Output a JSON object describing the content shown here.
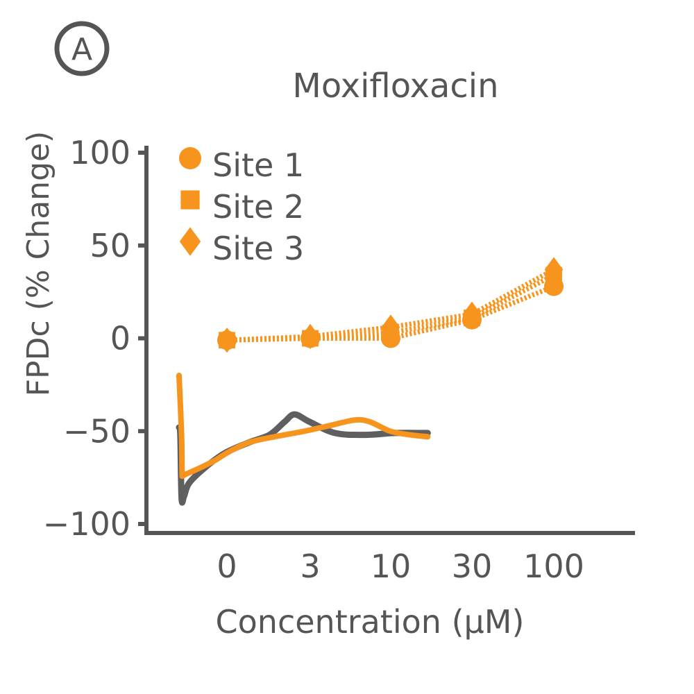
{
  "chart_data": {
    "type": "line",
    "panel_label": "A",
    "title": "Moxifloxacin",
    "xlabel": "Concentration (μM)",
    "ylabel": "FPDc (% Change)",
    "categories": [
      "0",
      "3",
      "10",
      "30",
      "100"
    ],
    "ylim": [
      -100,
      100
    ],
    "yticks": [
      100,
      50,
      0,
      -50,
      -100
    ],
    "ytick_labels": [
      "100",
      "50",
      "0",
      "−50",
      "−100"
    ],
    "legend_position": "top-left",
    "colors": {
      "series": "#f7941d",
      "trace_dark": "#5f5f5f",
      "axis": "#555555"
    },
    "series": [
      {
        "name": "Site 1",
        "marker": "circle",
        "values": [
          -1,
          0,
          0,
          10,
          28
        ]
      },
      {
        "name": "Site 2",
        "marker": "square",
        "values": [
          -1,
          0,
          3,
          11,
          34
        ]
      },
      {
        "name": "Site 3",
        "marker": "diamond",
        "values": [
          -1,
          1,
          6,
          13,
          37
        ]
      }
    ],
    "inset_traces": {
      "x_range": [
        0,
        1
      ],
      "dark": {
        "x": [
          0,
          0.005,
          0.01,
          0.02,
          0.04,
          0.1,
          0.18,
          0.28,
          0.36,
          0.42,
          0.46,
          0.52,
          0.62,
          0.74,
          0.86,
          0.99
        ],
        "y": [
          -48,
          -52,
          -86,
          -85,
          -78,
          -70,
          -62,
          -56,
          -52,
          -45,
          -41,
          -45,
          -51,
          -52,
          -51,
          -51
        ]
      },
      "orange": {
        "x": [
          0,
          0.01,
          0.012,
          0.014,
          0.03,
          0.08,
          0.14,
          0.2,
          0.28,
          0.38,
          0.5,
          0.6,
          0.7,
          0.76,
          0.84,
          0.92,
          0.99
        ],
        "y": [
          -20,
          -52,
          -72,
          -74,
          -73,
          -70,
          -66,
          -61,
          -56,
          -53,
          -50,
          -47,
          -44,
          -45,
          -50,
          -52,
          -53
        ]
      }
    }
  }
}
